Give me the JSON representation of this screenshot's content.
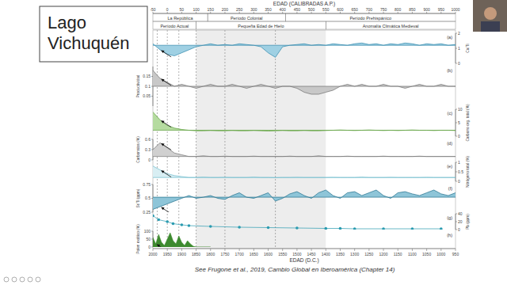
{
  "slide": {
    "title_lines": [
      "Lago",
      "Vichuquén"
    ],
    "citation": "See Frugone et al., 2019, Cambio Global en Iberoamérica (Chapter 14)"
  },
  "chart_data": {
    "type": "line",
    "xlabel": "EDAD (D.C.)",
    "xlim": [
      2000,
      950
    ],
    "xticks": [
      2000,
      1950,
      1900,
      1850,
      1800,
      1750,
      1700,
      1650,
      1600,
      1550,
      1500,
      1450,
      1400,
      1350,
      1300,
      1250,
      1200,
      1150,
      1100,
      1050,
      1000,
      950
    ],
    "top_axis": {
      "label": "EDAD (CALIBRADAS A.P.)",
      "xlim": [
        -50,
        1000
      ],
      "xticks": [
        -50,
        0,
        50,
        100,
        150,
        200,
        250,
        300,
        350,
        400,
        450,
        500,
        550,
        600,
        650,
        700,
        750,
        800,
        850,
        900,
        950,
        1000
      ]
    },
    "periods": [
      [
        {
          "label": "La República",
          "start": 2000,
          "end": 1810
        },
        {
          "label": "Período Colonial",
          "start": 1810,
          "end": 1540
        },
        {
          "label": "Período Prehispánico",
          "start": 1540,
          "end": 950
        }
      ],
      [
        {
          "label": "Período Actual",
          "start": 2000,
          "end": 1850
        },
        {
          "label": "Pequeña Edad de Hielo",
          "start": 1850,
          "end": 1400
        },
        {
          "label": "Anomalía Climática Medieval",
          "start": 1400,
          "end": 950
        }
      ]
    ],
    "dashed_lines": [
      1985,
      1950,
      1910,
      1850,
      1750,
      1575
    ],
    "panels": [
      {
        "letter": "(a)",
        "label": "Ca/Ti",
        "type": "line",
        "colors": [
          "#2e86ab",
          "#9fd0e3"
        ],
        "ylim": [
          0,
          2
        ],
        "yticks": [
          0,
          1,
          2
        ],
        "mean": 1.2,
        "x": [
          2000,
          1975,
          1950,
          1925,
          1900,
          1875,
          1850,
          1825,
          1800,
          1775,
          1750,
          1725,
          1700,
          1675,
          1650,
          1625,
          1600,
          1575,
          1550,
          1525,
          1500,
          1475,
          1450,
          1425,
          1400,
          1375,
          1350,
          1325,
          1300,
          1275,
          1250,
          1225,
          1200,
          1175,
          1150,
          1125,
          1100,
          1075,
          1050,
          1025,
          1000,
          975,
          950
        ],
        "values": [
          1.3,
          0.9,
          0.6,
          0.5,
          0.7,
          0.9,
          1.1,
          1.2,
          1.3,
          1.2,
          1.25,
          1.2,
          1.3,
          1.25,
          1.2,
          1.1,
          0.7,
          0.4,
          1.1,
          1.2,
          1.25,
          1.3,
          1.2,
          1.25,
          1.2,
          1.3,
          1.25,
          1.2,
          1.3,
          1.35,
          1.25,
          1.3,
          1.2,
          1.3,
          1.25,
          1.35,
          1.3,
          1.2,
          1.3,
          1.25,
          1.3,
          1.2,
          1.25
        ]
      },
      {
        "letter": "(b)",
        "label": "Productividad",
        "type": "line",
        "colors": [
          "#6e6e6e",
          "#c8c8c8"
        ],
        "ylim": [
          0,
          0.2
        ],
        "yticks": [
          0.05,
          0.1,
          0.15
        ],
        "mean": 0.1,
        "x": [
          2000,
          1975,
          1950,
          1925,
          1900,
          1875,
          1850,
          1825,
          1800,
          1775,
          1750,
          1725,
          1700,
          1675,
          1650,
          1625,
          1600,
          1575,
          1550,
          1525,
          1500,
          1475,
          1450,
          1425,
          1400,
          1375,
          1350,
          1325,
          1300,
          1275,
          1250,
          1225,
          1200,
          1175,
          1150,
          1125,
          1100,
          1075,
          1050,
          1025,
          1000,
          975,
          950
        ],
        "values": [
          0.18,
          0.14,
          0.12,
          0.1,
          0.11,
          0.1,
          0.09,
          0.1,
          0.11,
          0.1,
          0.1,
          0.11,
          0.1,
          0.09,
          0.1,
          0.11,
          0.1,
          0.09,
          0.1,
          0.1,
          0.09,
          0.07,
          0.06,
          0.06,
          0.07,
          0.08,
          0.1,
          0.11,
          0.1,
          0.11,
          0.1,
          0.1,
          0.11,
          0.1,
          0.1,
          0.09,
          0.1,
          0.11,
          0.1,
          0.1,
          0.11,
          0.1,
          0.1
        ]
      },
      {
        "letter": "(c)",
        "label": "Carbono org. total (%)",
        "type": "line",
        "colors": [
          "#5a9e3a",
          "#b5dba0"
        ],
        "ylim": [
          0,
          10
        ],
        "yticks": [
          0,
          5,
          10
        ],
        "mean": 2.2,
        "x": [
          2000,
          1975,
          1950,
          1925,
          1900,
          1875,
          1850,
          1825,
          1800,
          1775,
          1750,
          1725,
          1700,
          1675,
          1650,
          1625,
          1600,
          1575,
          1550,
          1525,
          1500,
          1475,
          1450,
          1425,
          1400,
          1375,
          1350,
          1325,
          1300,
          1275,
          1250,
          1225,
          1200,
          1175,
          1150,
          1125,
          1100,
          1075,
          1050,
          1025,
          1000,
          975,
          950
        ],
        "values": [
          9,
          6,
          4,
          3,
          2.5,
          2.2,
          2,
          2,
          2.1,
          2,
          2,
          2.1,
          2,
          2,
          2.1,
          2,
          1.9,
          2,
          2.1,
          2,
          2,
          2.1,
          2,
          2,
          2.1,
          2.2,
          2.3,
          2.2,
          2.1,
          2.2,
          2.3,
          2.2,
          2.1,
          2.2,
          2.1,
          2.2,
          2.3,
          2.2,
          2.2,
          2.1,
          2.2,
          2.2,
          2.1
        ]
      },
      {
        "letter": "(d)",
        "label": "Carbonatos (%)",
        "type": "line",
        "colors": [
          "#777777",
          "#d0d0d0"
        ],
        "ylim": [
          0,
          0.6
        ],
        "yticks": [
          0,
          0.3,
          0.6
        ],
        "mean": 0.1,
        "x": [
          2000,
          1975,
          1950,
          1925,
          1900,
          1875,
          1850,
          1825,
          1800,
          1775,
          1750,
          1725,
          1700,
          1675,
          1650,
          1625,
          1600,
          1575,
          1550,
          1525,
          1500,
          1475,
          1450,
          1425,
          1400,
          1375,
          1350,
          1325,
          1300,
          1275,
          1250,
          1225,
          1200,
          1175,
          1150,
          1125,
          1100,
          1075,
          1050,
          1025,
          1000,
          975,
          950
        ],
        "values": [
          0.3,
          0.5,
          0.35,
          0.2,
          0.15,
          0.1,
          0.1,
          0.12,
          0.1,
          0.1,
          0.11,
          0.1,
          0.1,
          0.1,
          0.11,
          0.1,
          0.1,
          0.1,
          0.1,
          0.11,
          0.1,
          0.1,
          0.1,
          0.12,
          0.1,
          0.1,
          0.1,
          0.11,
          0.1,
          0.1,
          0.1,
          0.1,
          0.11,
          0.1,
          0.1,
          0.1,
          0.1,
          0.11,
          0.1,
          0.1,
          0.1,
          0.1,
          0.1
        ]
      },
      {
        "letter": "(e)",
        "label": "Nitrógeno total (%)",
        "type": "line",
        "colors": [
          "#6fbccd",
          "#d8eef3"
        ],
        "ylim": [
          0,
          1
        ],
        "yticks": [
          0,
          0.5,
          1
        ],
        "mean": 0.2,
        "x": [
          2000,
          1975,
          1950,
          1925,
          1900,
          1875,
          1850,
          1825,
          1800,
          1775,
          1750,
          1725,
          1700,
          1675,
          1650,
          1625,
          1600,
          1575,
          1550,
          1525,
          1500,
          1475,
          1450,
          1425,
          1400,
          1375,
          1350,
          1325,
          1300,
          1275,
          1250,
          1225,
          1200,
          1175,
          1150,
          1125,
          1100,
          1075,
          1050,
          1025,
          1000,
          975,
          950
        ],
        "values": [
          0.8,
          0.6,
          0.4,
          0.3,
          0.25,
          0.2,
          0.2,
          0.22,
          0.2,
          0.2,
          0.21,
          0.2,
          0.2,
          0.2,
          0.22,
          0.2,
          0.2,
          0.19,
          0.2,
          0.2,
          0.21,
          0.2,
          0.2,
          0.2,
          0.2,
          0.21,
          0.2,
          0.2,
          0.2,
          0.22,
          0.2,
          0.2,
          0.2,
          0.21,
          0.2,
          0.2,
          0.2,
          0.2,
          0.21,
          0.2,
          0.2,
          0.2,
          0.2
        ]
      },
      {
        "letter": "(f)",
        "label": "Sr/Ti (ppm)",
        "type": "line",
        "colors": [
          "#1f6f8b",
          "#8ec5d8"
        ],
        "ylim": [
          0.25,
          0.75
        ],
        "yticks": [
          0.25,
          0.5,
          0.75
        ],
        "mean": 0.52,
        "x": [
          2000,
          1975,
          1950,
          1925,
          1900,
          1875,
          1850,
          1825,
          1800,
          1775,
          1750,
          1725,
          1700,
          1675,
          1650,
          1625,
          1600,
          1575,
          1550,
          1525,
          1500,
          1475,
          1450,
          1425,
          1400,
          1375,
          1350,
          1325,
          1300,
          1275,
          1250,
          1225,
          1200,
          1175,
          1150,
          1125,
          1100,
          1075,
          1050,
          1025,
          1000,
          975,
          950
        ],
        "values": [
          0.3,
          0.35,
          0.4,
          0.45,
          0.5,
          0.55,
          0.5,
          0.52,
          0.55,
          0.5,
          0.48,
          0.55,
          0.6,
          0.52,
          0.5,
          0.55,
          0.6,
          0.45,
          0.5,
          0.58,
          0.62,
          0.55,
          0.5,
          0.6,
          0.65,
          0.55,
          0.5,
          0.6,
          0.62,
          0.55,
          0.6,
          0.65,
          0.55,
          0.5,
          0.6,
          0.62,
          0.58,
          0.55,
          0.6,
          0.65,
          0.58,
          0.55,
          0.6
        ]
      },
      {
        "letter": "(g)",
        "label": "Pb (ppm)",
        "type": "scatter",
        "color": "#2a9bb0",
        "marker": "circle",
        "line_style": "solid",
        "ylim": [
          0,
          40
        ],
        "yticks": [
          0,
          20,
          40
        ],
        "x": [
          2000,
          1980,
          1950,
          1930,
          1900,
          1875,
          1800,
          1700,
          1600,
          1500,
          1400,
          1350,
          1300,
          1200,
          1100,
          1000
        ],
        "values": [
          35,
          25,
          20,
          15,
          12,
          10,
          8,
          6,
          5,
          4,
          3,
          3,
          2,
          2,
          2,
          2
        ]
      },
      {
        "letter": "(h)",
        "label": "Polen exótico (%)",
        "type": "area",
        "color": "#3d8a2f",
        "ylim": [
          0,
          100
        ],
        "yticks": [
          0,
          50,
          100
        ],
        "x": [
          2000,
          1990,
          1980,
          1970,
          1960,
          1950,
          1940,
          1930,
          1920,
          1910,
          1900,
          1890,
          1880,
          1870,
          1860,
          1850,
          1825,
          1800
        ],
        "values": [
          60,
          20,
          80,
          30,
          10,
          50,
          90,
          40,
          20,
          70,
          30,
          10,
          40,
          20,
          5,
          0,
          0,
          0
        ]
      }
    ]
  }
}
